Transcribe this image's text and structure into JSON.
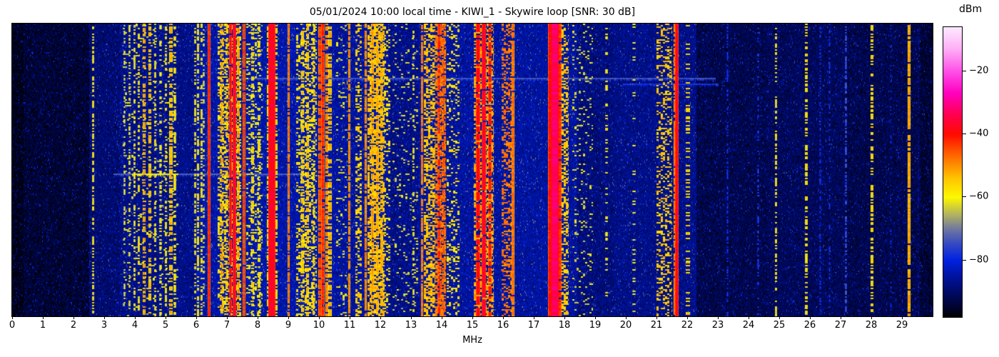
{
  "title": "05/01/2024 10:00 local time - KIWI_1 - Skywire loop [SNR: 30 dB]",
  "xlabel": "MHz",
  "colorbar": {
    "label": "dBm",
    "ticks": [
      {
        "value": -20,
        "label": "−20"
      },
      {
        "value": -40,
        "label": "−40"
      },
      {
        "value": -60,
        "label": "−60"
      },
      {
        "value": -80,
        "label": "−80"
      }
    ]
  },
  "x_ticks": [
    {
      "value": 0,
      "label": "0"
    },
    {
      "value": 1,
      "label": "1"
    },
    {
      "value": 2,
      "label": "2"
    },
    {
      "value": 3,
      "label": "3"
    },
    {
      "value": 4,
      "label": "4"
    },
    {
      "value": 5,
      "label": "5"
    },
    {
      "value": 6,
      "label": "6"
    },
    {
      "value": 7,
      "label": "7"
    },
    {
      "value": 8,
      "label": "8"
    },
    {
      "value": 9,
      "label": "9"
    },
    {
      "value": 10,
      "label": "10"
    },
    {
      "value": 11,
      "label": "11"
    },
    {
      "value": 12,
      "label": "12"
    },
    {
      "value": 13,
      "label": "13"
    },
    {
      "value": 14,
      "label": "14"
    },
    {
      "value": 15,
      "label": "15"
    },
    {
      "value": 16,
      "label": "16"
    },
    {
      "value": 17,
      "label": "17"
    },
    {
      "value": 18,
      "label": "18"
    },
    {
      "value": 19,
      "label": "19"
    },
    {
      "value": 20,
      "label": "20"
    },
    {
      "value": 21,
      "label": "21"
    },
    {
      "value": 22,
      "label": "22"
    },
    {
      "value": 23,
      "label": "23"
    },
    {
      "value": 24,
      "label": "24"
    },
    {
      "value": 25,
      "label": "25"
    },
    {
      "value": 26,
      "label": "26"
    },
    {
      "value": 27,
      "label": "27"
    },
    {
      "value": 28,
      "label": "28"
    },
    {
      "value": 29,
      "label": "29"
    }
  ],
  "chart_data": {
    "type": "heatmap",
    "title": "05/01/2024 10:00 local time - KIWI_1 - Skywire loop [SNR: 30 dB]",
    "xlabel": "MHz",
    "x_range": [
      0,
      30
    ],
    "value_label": "dBm",
    "value_range": [
      -98,
      -6
    ],
    "legend_position": "right-colorbar",
    "grid": false,
    "colormap_stops": [
      [
        -98,
        "#000000"
      ],
      [
        -95,
        "#00032e"
      ],
      [
        -90,
        "#000a66"
      ],
      [
        -85,
        "#0013a0"
      ],
      [
        -80,
        "#0022e0"
      ],
      [
        -75,
        "#3347c4"
      ],
      [
        -70,
        "#70789f"
      ],
      [
        -65,
        "#b9b957"
      ],
      [
        -60,
        "#fdf800"
      ],
      [
        -54,
        "#ffc400"
      ],
      [
        -47,
        "#ff6a00"
      ],
      [
        -40,
        "#ff0a00"
      ],
      [
        -34,
        "#ff004d"
      ],
      [
        -27,
        "#ff00bf"
      ],
      [
        -20,
        "#ff50e8"
      ],
      [
        -13,
        "#ffaef5"
      ],
      [
        -6,
        "#fceaff"
      ]
    ],
    "noise_floor": [
      [
        0,
        0.35,
        -96
      ],
      [
        0.35,
        2.5,
        -94
      ],
      [
        2.5,
        3.5,
        -89
      ],
      [
        3.5,
        6.0,
        -87
      ],
      [
        6.0,
        10.5,
        -84
      ],
      [
        10.5,
        12.3,
        -85
      ],
      [
        12.3,
        13.25,
        -87
      ],
      [
        13.25,
        18.4,
        -85
      ],
      [
        18.4,
        19.6,
        -88
      ],
      [
        19.6,
        22.3,
        -87
      ],
      [
        22.3,
        24.6,
        -92
      ],
      [
        24.6,
        27.2,
        -91
      ],
      [
        27.2,
        29.6,
        -92
      ],
      [
        29.6,
        30,
        -94
      ]
    ],
    "bands": [
      {
        "f0": 2.6,
        "f1": 2.66,
        "peak": -57,
        "duty": 0.55,
        "mode": "dash"
      },
      {
        "f0": 3.62,
        "f1": 3.67,
        "peak": -61,
        "duty": 0.4,
        "mode": "dash"
      },
      {
        "f0": 3.79,
        "f1": 3.84,
        "peak": -59,
        "duty": 0.4,
        "mode": "dash"
      },
      {
        "f0": 3.95,
        "f1": 4.0,
        "peak": -58,
        "duty": 0.45,
        "mode": "dash"
      },
      {
        "f0": 4.1,
        "f1": 4.15,
        "peak": -56,
        "duty": 0.4,
        "mode": "dash"
      },
      {
        "f0": 4.26,
        "f1": 4.32,
        "peak": -50,
        "duty": 0.55,
        "mode": "dash"
      },
      {
        "f0": 4.44,
        "f1": 4.5,
        "peak": -52,
        "duty": 0.5,
        "mode": "dash"
      },
      {
        "f0": 4.62,
        "f1": 4.68,
        "peak": -58,
        "duty": 0.4,
        "mode": "dash"
      },
      {
        "f0": 4.8,
        "f1": 4.86,
        "peak": -60,
        "duty": 0.35,
        "mode": "dash"
      },
      {
        "f0": 4.97,
        "f1": 5.02,
        "peak": -56,
        "duty": 0.4,
        "mode": "dash"
      },
      {
        "f0": 5.12,
        "f1": 5.2,
        "peak": -53,
        "duty": 0.6,
        "mode": "dash"
      },
      {
        "f0": 5.26,
        "f1": 5.32,
        "peak": -58,
        "duty": 0.45,
        "mode": "dash"
      },
      {
        "f0": 3.6,
        "f1": 5.4,
        "peak": -63,
        "duty": 0.06,
        "mode": "speckle"
      },
      {
        "f0": 5.92,
        "f1": 5.97,
        "peak": -58,
        "duty": 0.45,
        "mode": "dash"
      },
      {
        "f0": 6.03,
        "f1": 6.08,
        "peak": -55,
        "duty": 0.5,
        "mode": "dash"
      },
      {
        "f0": 6.13,
        "f1": 6.18,
        "peak": -56,
        "duty": 0.5,
        "mode": "dash"
      },
      {
        "f0": 6.21,
        "f1": 6.25,
        "peak": -60,
        "duty": 0.4,
        "mode": "dash"
      },
      {
        "f0": 6.38,
        "f1": 6.44,
        "peak": -40,
        "duty": 1.0,
        "mode": "solid"
      },
      {
        "f0": 6.7,
        "f1": 7.45,
        "peak": -57,
        "duty": 0.4,
        "mode": "speckle"
      },
      {
        "f0": 6.8,
        "f1": 6.87,
        "peak": -50,
        "duty": 0.55,
        "mode": "dash"
      },
      {
        "f0": 6.95,
        "f1": 7.01,
        "peak": -52,
        "duty": 0.5,
        "mode": "dash"
      },
      {
        "f0": 7.06,
        "f1": 7.15,
        "peak": -38,
        "duty": 0.92,
        "mode": "solid"
      },
      {
        "f0": 7.18,
        "f1": 7.27,
        "peak": -36,
        "duty": 1.0,
        "mode": "solid"
      },
      {
        "f0": 7.33,
        "f1": 7.39,
        "peak": -49,
        "duty": 0.55,
        "mode": "dash"
      },
      {
        "f0": 7.52,
        "f1": 7.57,
        "peak": -42,
        "duty": 0.95,
        "mode": "solid"
      },
      {
        "f0": 7.62,
        "f1": 8.15,
        "peak": -60,
        "duty": 0.2,
        "mode": "speckle"
      },
      {
        "f0": 7.8,
        "f1": 7.86,
        "peak": -55,
        "duty": 0.45,
        "mode": "dash"
      },
      {
        "f0": 8.01,
        "f1": 8.07,
        "peak": -57,
        "duty": 0.4,
        "mode": "dash"
      },
      {
        "f0": 8.3,
        "f1": 8.34,
        "peak": -54,
        "duty": 0.6,
        "mode": "dash"
      },
      {
        "f0": 8.34,
        "f1": 8.56,
        "peak": -37,
        "duty": 1.0,
        "mode": "solid"
      },
      {
        "f0": 8.56,
        "f1": 8.62,
        "peak": -55,
        "duty": 0.5,
        "mode": "dash"
      },
      {
        "f0": 8.98,
        "f1": 9.03,
        "peak": -45,
        "duty": 0.9,
        "mode": "solid"
      },
      {
        "f0": 9.25,
        "f1": 9.9,
        "peak": -57,
        "duty": 0.35,
        "mode": "speckle"
      },
      {
        "f0": 9.42,
        "f1": 9.48,
        "peak": -54,
        "duty": 0.5,
        "mode": "dash"
      },
      {
        "f0": 9.58,
        "f1": 9.66,
        "peak": -53,
        "duty": 0.55,
        "mode": "dash"
      },
      {
        "f0": 9.78,
        "f1": 9.84,
        "peak": -55,
        "duty": 0.45,
        "mode": "dash"
      },
      {
        "f0": 9.97,
        "f1": 10.06,
        "peak": -44,
        "duty": 0.8,
        "mode": "dash"
      },
      {
        "f0": 10.08,
        "f1": 10.17,
        "peak": -42,
        "duty": 0.9,
        "mode": "solid"
      },
      {
        "f0": 10.2,
        "f1": 10.29,
        "peak": -48,
        "duty": 0.7,
        "mode": "dash"
      },
      {
        "f0": 10.31,
        "f1": 10.39,
        "peak": -52,
        "duty": 0.6,
        "mode": "dash"
      },
      {
        "f0": 10.55,
        "f1": 10.9,
        "peak": -62,
        "duty": 0.1,
        "mode": "speckle"
      },
      {
        "f0": 10.96,
        "f1": 11.01,
        "peak": -46,
        "duty": 0.85,
        "mode": "solid"
      },
      {
        "f0": 11.18,
        "f1": 11.38,
        "peak": -56,
        "duty": 0.35,
        "mode": "speckle"
      },
      {
        "f0": 11.48,
        "f1": 11.53,
        "peak": -46,
        "duty": 0.85,
        "mode": "solid"
      },
      {
        "f0": 11.58,
        "f1": 12.12,
        "peak": -54,
        "duty": 0.6,
        "mode": "speckle"
      },
      {
        "f0": 11.7,
        "f1": 11.76,
        "peak": -50,
        "duty": 0.6,
        "mode": "dash"
      },
      {
        "f0": 11.86,
        "f1": 11.92,
        "peak": -51,
        "duty": 0.6,
        "mode": "dash"
      },
      {
        "f0": 12.0,
        "f1": 12.06,
        "peak": -52,
        "duty": 0.55,
        "mode": "dash"
      },
      {
        "f0": 12.12,
        "f1": 12.3,
        "peak": -58,
        "duty": 0.3,
        "mode": "speckle"
      },
      {
        "f0": 12.4,
        "f1": 13.2,
        "peak": -63,
        "duty": 0.08,
        "mode": "speckle"
      },
      {
        "f0": 13.05,
        "f1": 13.1,
        "peak": -58,
        "duty": 0.35,
        "mode": "dash"
      },
      {
        "f0": 13.33,
        "f1": 13.38,
        "peak": -45,
        "duty": 0.85,
        "mode": "solid"
      },
      {
        "f0": 13.42,
        "f1": 13.76,
        "peak": -54,
        "duty": 0.5,
        "mode": "speckle"
      },
      {
        "f0": 13.8,
        "f1": 14.12,
        "peak": -48,
        "duty": 0.6,
        "mode": "speckle"
      },
      {
        "f0": 13.86,
        "f1": 13.95,
        "peak": -42,
        "duty": 0.6,
        "mode": "dash"
      },
      {
        "f0": 14.02,
        "f1": 14.09,
        "peak": -44,
        "duty": 0.55,
        "mode": "dash"
      },
      {
        "f0": 14.16,
        "f1": 14.55,
        "peak": -58,
        "duty": 0.22,
        "mode": "speckle"
      },
      {
        "f0": 15.05,
        "f1": 15.68,
        "peak": -52,
        "duty": 0.55,
        "mode": "speckle"
      },
      {
        "f0": 15.12,
        "f1": 15.23,
        "peak": -38,
        "duty": 0.85,
        "mode": "solid"
      },
      {
        "f0": 15.31,
        "f1": 15.43,
        "peak": -36,
        "duty": 0.95,
        "mode": "solid"
      },
      {
        "f0": 15.51,
        "f1": 15.61,
        "peak": -40,
        "duty": 0.75,
        "mode": "dash"
      },
      {
        "f0": 15.96,
        "f1": 16.25,
        "peak": -48,
        "duty": 0.4,
        "mode": "speckle"
      },
      {
        "f0": 16.29,
        "f1": 16.34,
        "peak": -46,
        "duty": 0.95,
        "mode": "solid"
      },
      {
        "f0": 17.46,
        "f1": 17.56,
        "peak": -40,
        "duty": 1.0,
        "mode": "solid"
      },
      {
        "f0": 17.56,
        "f1": 17.8,
        "peak": -33,
        "duty": 1.0,
        "mode": "solid"
      },
      {
        "f0": 17.8,
        "f1": 17.89,
        "peak": -42,
        "duty": 0.95,
        "mode": "solid"
      },
      {
        "f0": 17.9,
        "f1": 18.12,
        "peak": -55,
        "duty": 0.45,
        "mode": "speckle"
      },
      {
        "f0": 18.25,
        "f1": 18.9,
        "peak": -62,
        "duty": 0.1,
        "mode": "speckle"
      },
      {
        "f0": 19.32,
        "f1": 19.4,
        "peak": -58,
        "duty": 0.25,
        "mode": "dash"
      },
      {
        "f0": 20.22,
        "f1": 20.3,
        "peak": -61,
        "duty": 0.15,
        "mode": "dash"
      },
      {
        "f0": 21.0,
        "f1": 21.48,
        "peak": -55,
        "duty": 0.3,
        "mode": "speckle"
      },
      {
        "f0": 21.56,
        "f1": 21.61,
        "peak": -46,
        "duty": 0.8,
        "mode": "dash"
      },
      {
        "f0": 21.61,
        "f1": 21.7,
        "peak": -38,
        "duty": 1.0,
        "mode": "solid"
      },
      {
        "f0": 21.95,
        "f1": 22.06,
        "peak": -55,
        "duty": 0.3,
        "mode": "dash"
      },
      {
        "f0": 23.28,
        "f1": 23.33,
        "peak": -77,
        "duty": 0.4,
        "mode": "dash"
      },
      {
        "f0": 24.28,
        "f1": 24.33,
        "peak": -75,
        "duty": 0.3,
        "mode": "dash"
      },
      {
        "f0": 24.86,
        "f1": 24.91,
        "peak": -57,
        "duty": 0.45,
        "mode": "dash"
      },
      {
        "f0": 25.84,
        "f1": 25.9,
        "peak": -56,
        "duty": 0.5,
        "mode": "dash"
      },
      {
        "f0": 26.3,
        "f1": 26.35,
        "peak": -78,
        "duty": 0.4,
        "mode": "dash"
      },
      {
        "f0": 26.6,
        "f1": 26.65,
        "peak": -77,
        "duty": 0.35,
        "mode": "dash"
      },
      {
        "f0": 27.14,
        "f1": 27.19,
        "peak": -72,
        "duty": 0.6,
        "mode": "dash"
      },
      {
        "f0": 27.97,
        "f1": 28.04,
        "peak": -55,
        "duty": 0.5,
        "mode": "dash"
      },
      {
        "f0": 28.6,
        "f1": 28.64,
        "peak": -79,
        "duty": 0.3,
        "mode": "dash"
      },
      {
        "f0": 29.18,
        "f1": 29.25,
        "peak": -50,
        "duty": 0.85,
        "mode": "dash"
      },
      {
        "f0": 29.5,
        "f1": 29.54,
        "peak": -80,
        "duty": 0.3,
        "mode": "dash"
      }
    ],
    "streaks": [
      {
        "row_frac": 0.183,
        "f0": 7.2,
        "f1": 22.9,
        "level": -74
      },
      {
        "row_frac": 0.205,
        "f0": 19.9,
        "f1": 23.0,
        "level": -78
      },
      {
        "row_frac": 0.512,
        "f0": 3.3,
        "f1": 9.6,
        "level": -73
      },
      {
        "row_frac": 0.512,
        "f0": 3.9,
        "f1": 5.4,
        "level": -60
      }
    ]
  }
}
